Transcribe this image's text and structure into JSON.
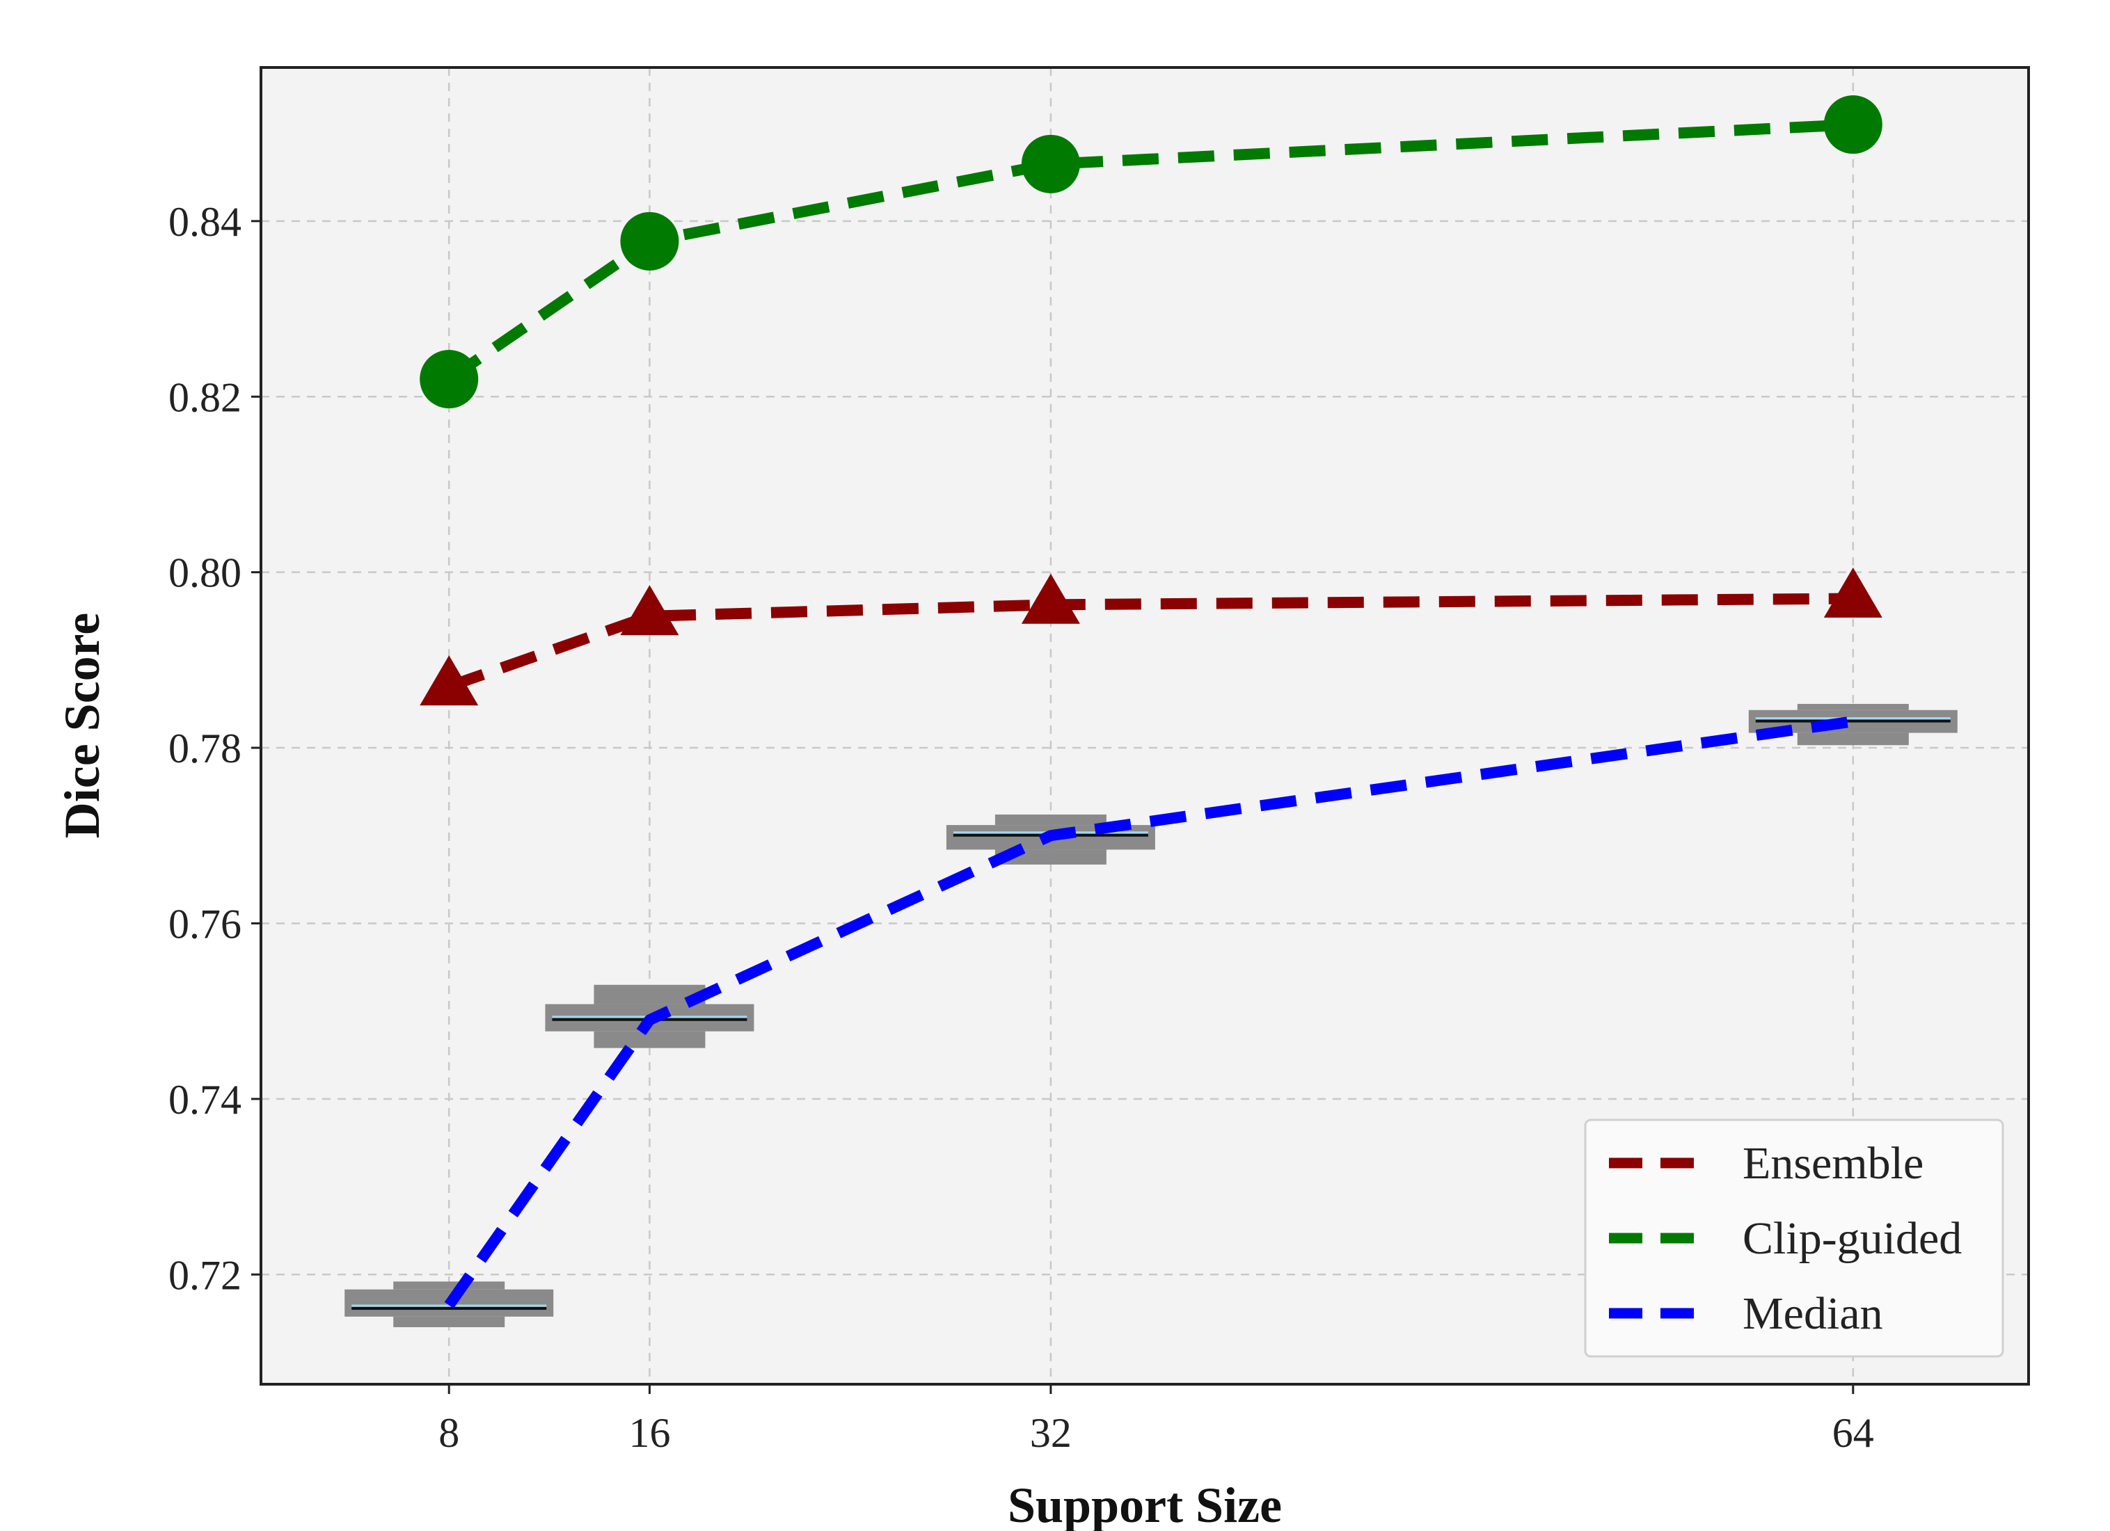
{
  "chart_data": {
    "type": "line",
    "title": "",
    "xlabel": "Support Size",
    "ylabel": "Dice Score",
    "x": [
      8,
      16,
      32,
      64
    ],
    "x_tick_labels": [
      "8",
      "16",
      "32",
      "64"
    ],
    "xlim": [
      0.5,
      71
    ],
    "ylim": [
      0.7075,
      0.8575
    ],
    "y_ticks": [
      0.72,
      0.74,
      0.76,
      0.78,
      0.8,
      0.82,
      0.84
    ],
    "y_tick_labels": [
      "0.72",
      "0.74",
      "0.76",
      "0.78",
      "0.80",
      "0.82",
      "0.84"
    ],
    "grid": true,
    "legend_position": "lower-right",
    "series": [
      {
        "name": "Ensemble",
        "color": "#8b0000",
        "marker": "triangle",
        "linestyle": "dashed",
        "values": [
          0.787,
          0.795,
          0.7963,
          0.797
        ]
      },
      {
        "name": "Clip-guided",
        "color": "#007a00",
        "marker": "circle",
        "linestyle": "dashed",
        "values": [
          0.822,
          0.8377,
          0.8465,
          0.851
        ]
      },
      {
        "name": "Median",
        "color": "#0000ff",
        "marker": "none",
        "linestyle": "dashed",
        "values": [
          0.7165,
          0.749,
          0.77,
          0.783
        ],
        "boxes": [
          {
            "x": 8,
            "q1": 0.7152,
            "median": 0.7163,
            "q3": 0.7183,
            "whisker_low": 0.714,
            "whisker_high": 0.7192
          },
          {
            "x": 16,
            "q1": 0.7477,
            "median": 0.7492,
            "q3": 0.7508,
            "whisker_low": 0.7458,
            "whisker_high": 0.753
          },
          {
            "x": 32,
            "q1": 0.7684,
            "median": 0.7702,
            "q3": 0.7712,
            "whisker_low": 0.7667,
            "whisker_high": 0.7724
          },
          {
            "x": 64,
            "q1": 0.7817,
            "median": 0.7832,
            "q3": 0.7843,
            "whisker_low": 0.7803,
            "whisker_high": 0.785
          }
        ]
      }
    ],
    "colors": {
      "plot_background": "#f3f3f3",
      "grid": "#c8c8c8",
      "box_fill": "#8a8a8a",
      "median_line_dark": "#111111",
      "median_line_light": "#9fd9f0"
    }
  }
}
